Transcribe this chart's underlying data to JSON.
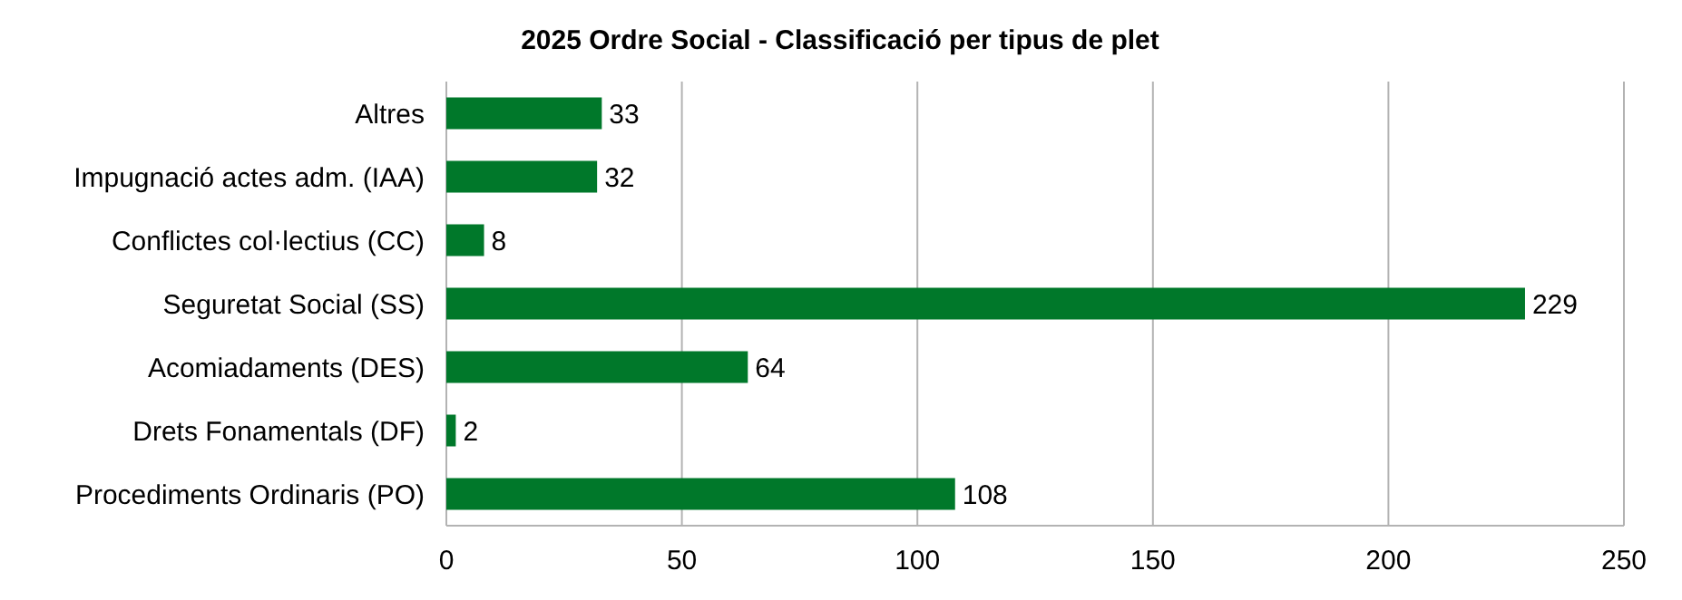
{
  "chart_data": {
    "type": "bar",
    "orientation": "horizontal",
    "title": "2025 Ordre Social - Classificació per tipus de plet",
    "categories": [
      "Altres",
      "Impugnació actes adm. (IAA)",
      "Conflictes col·lectius (CC)",
      "Seguretat Social (SS)",
      "Acomiadaments (DES)",
      "Drets Fonamentals (DF)",
      "Procediments Ordinaris (PO)"
    ],
    "values": [
      33,
      32,
      8,
      229,
      64,
      2,
      108
    ],
    "color": "#00782a",
    "xlim": [
      0,
      250
    ],
    "xticks": [
      0,
      50,
      100,
      150,
      200,
      250
    ],
    "grid": "x",
    "data_labels": true
  }
}
